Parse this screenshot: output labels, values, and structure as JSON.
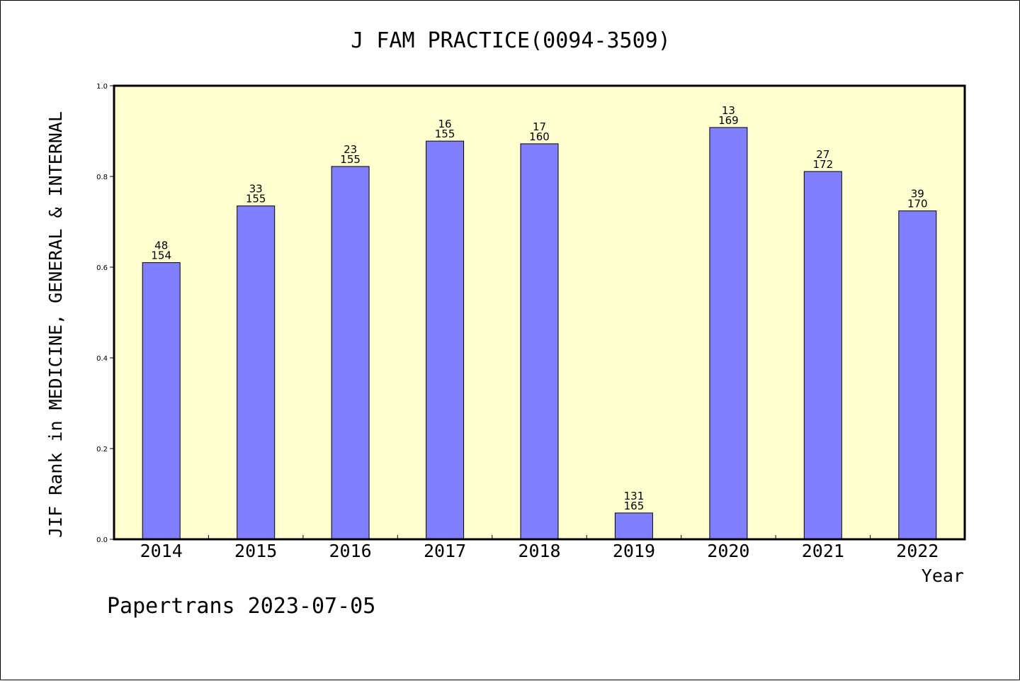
{
  "chart_data": {
    "type": "bar",
    "title": "J FAM PRACTICE(0094-3509)",
    "xlabel": "Year",
    "ylabel": "JIF Rank in MEDICINE, GENERAL & INTERNAL",
    "categories": [
      "2014",
      "2015",
      "2016",
      "2017",
      "2018",
      "2019",
      "2020",
      "2021",
      "2022"
    ],
    "values": [
      0.61,
      0.735,
      0.822,
      0.878,
      0.872,
      0.058,
      0.908,
      0.811,
      0.724
    ],
    "rank_labels": [
      {
        "rank": "48",
        "total": "154"
      },
      {
        "rank": "33",
        "total": "155"
      },
      {
        "rank": "23",
        "total": "155"
      },
      {
        "rank": "16",
        "total": "155"
      },
      {
        "rank": "17",
        "total": "160"
      },
      {
        "rank": "131",
        "total": "165"
      },
      {
        "rank": "13",
        "total": "169"
      },
      {
        "rank": "27",
        "total": "172"
      },
      {
        "rank": "39",
        "total": "170"
      }
    ],
    "ylim": [
      0,
      1
    ],
    "yticks": [
      "0.0",
      "0.2",
      "0.4",
      "0.6",
      "0.8",
      "1.0"
    ],
    "grid": false,
    "colors": {
      "bar": "#8080ff",
      "plot_background": "#ffffd0",
      "bar_edge": "#000000"
    }
  },
  "footer": {
    "text": "Papertrans 2023-07-05"
  }
}
